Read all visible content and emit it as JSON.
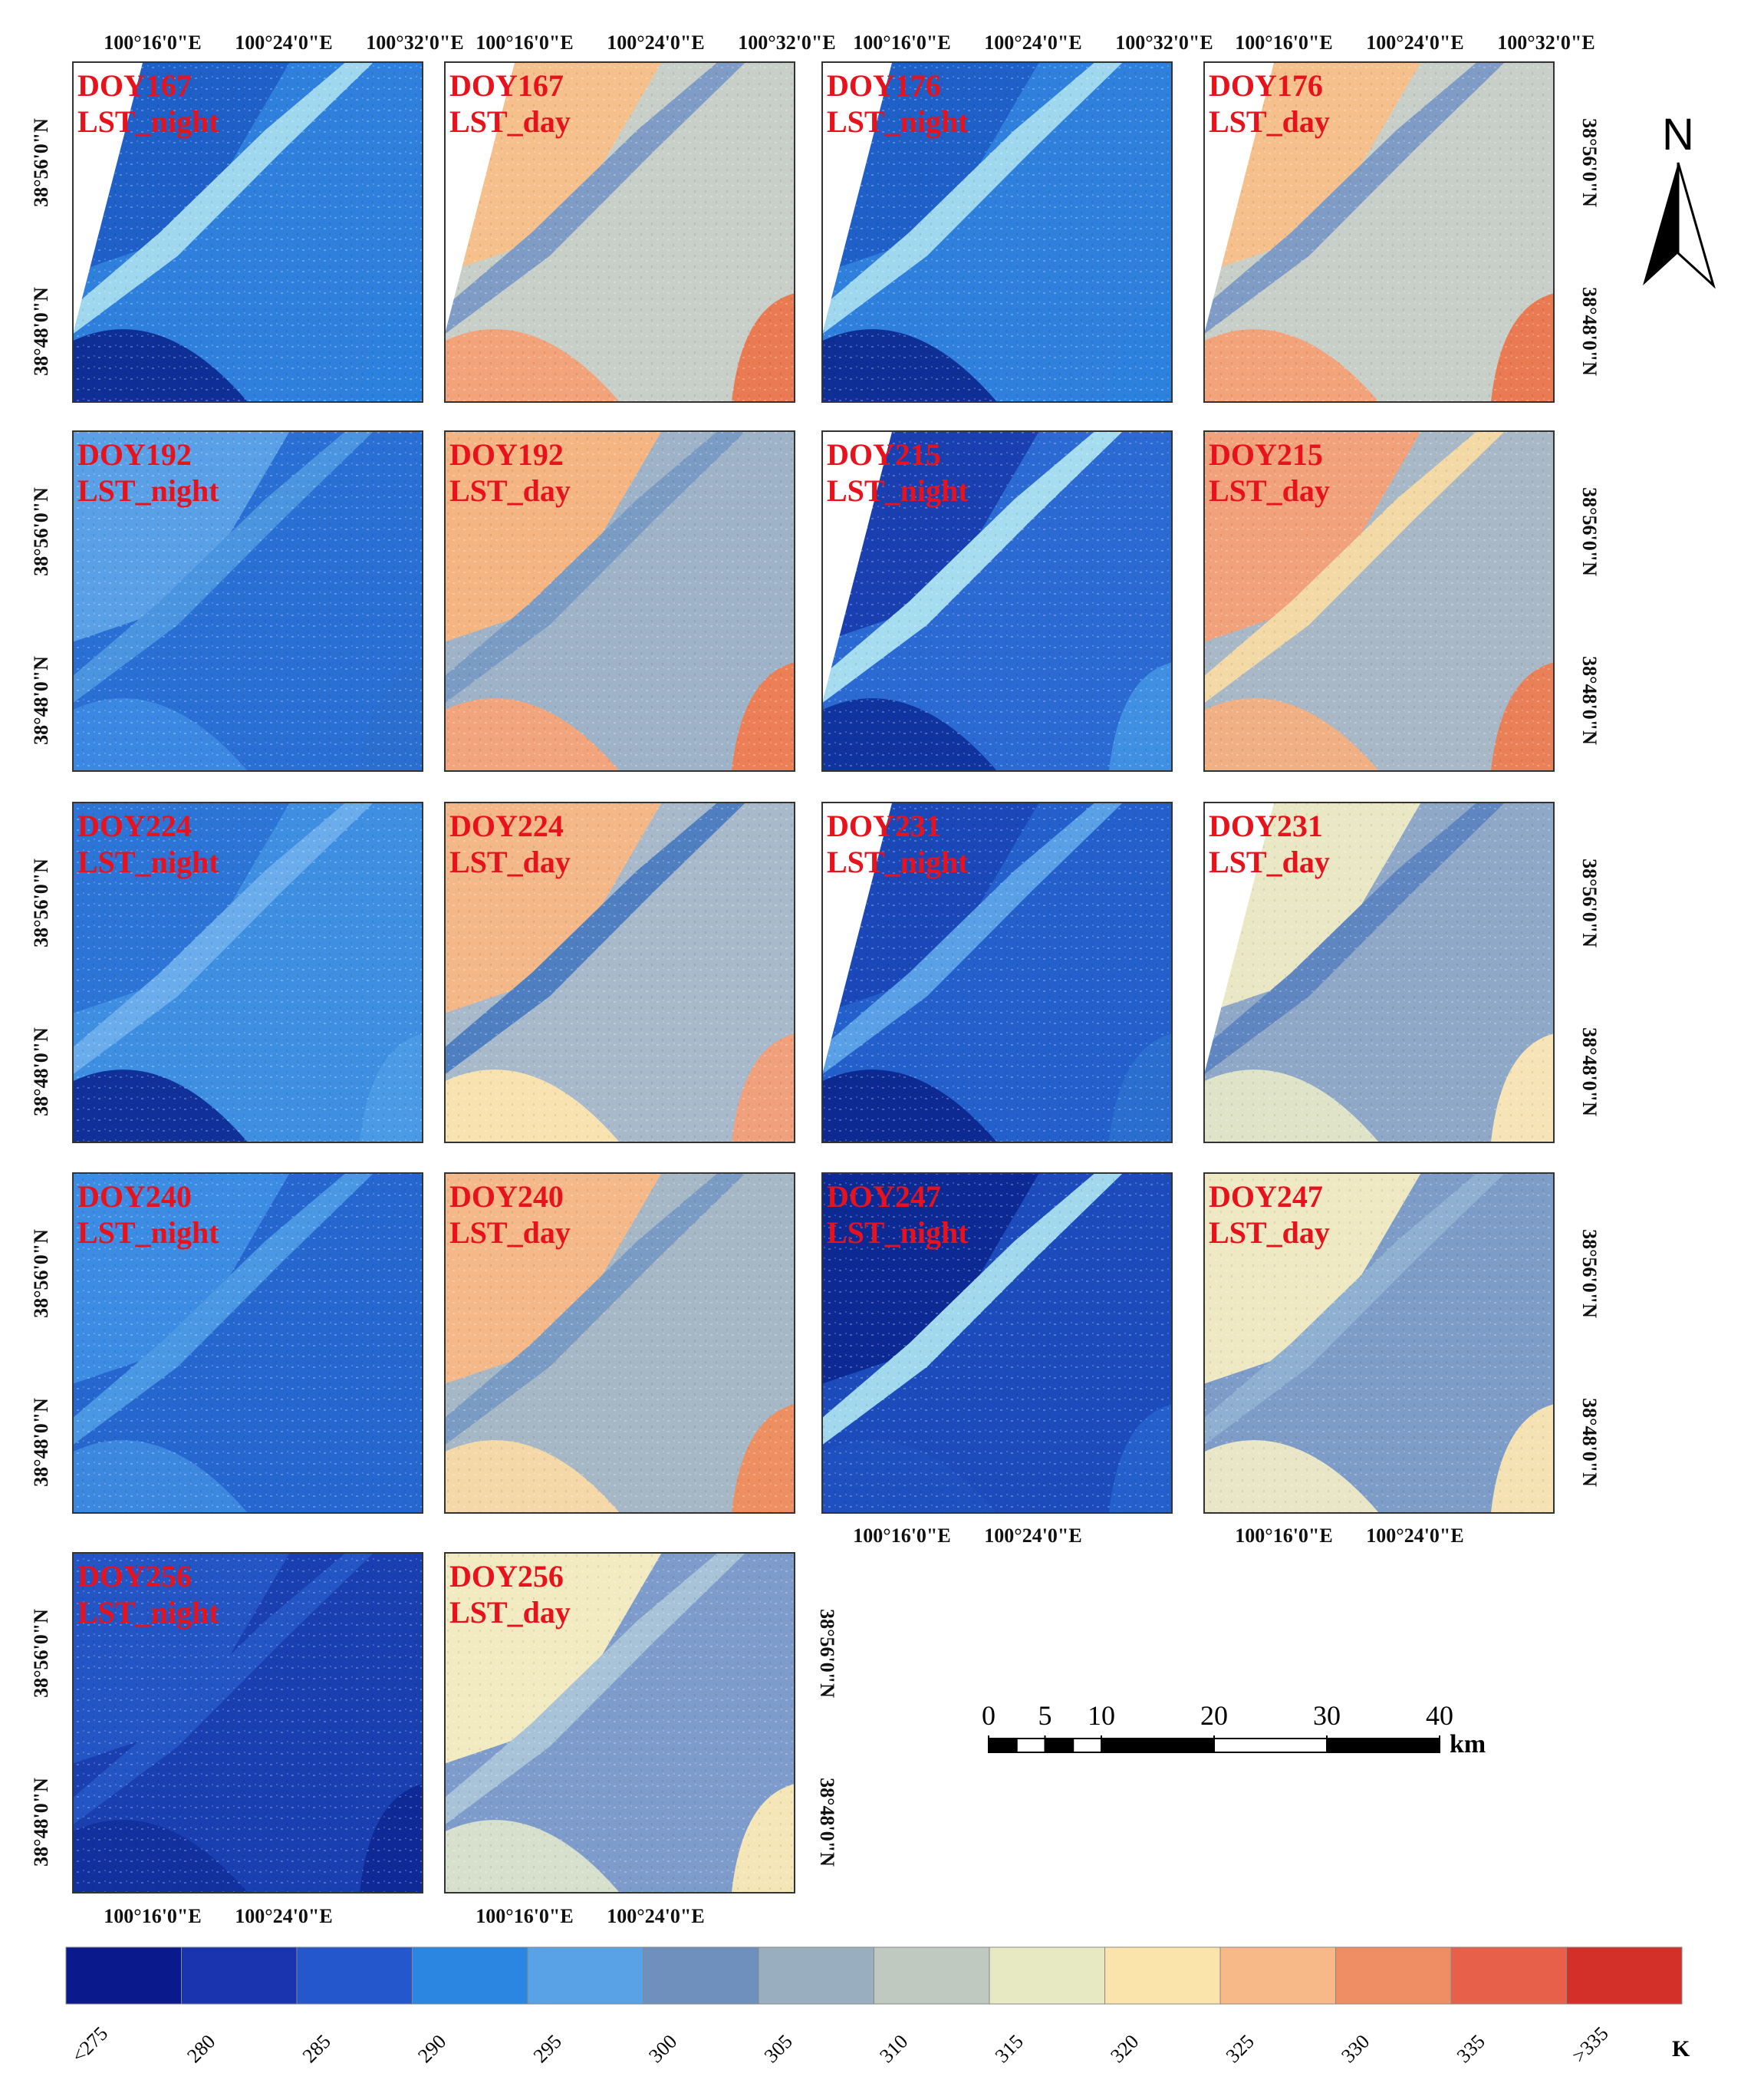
{
  "panels": [
    {
      "doy": "DOY167",
      "kind": "LST_night",
      "wedge": true,
      "colors": [
        "#2f7fdc",
        "#1f5fc8",
        "#9fd8ee",
        "#0e2f96",
        "#2c80de"
      ]
    },
    {
      "doy": "DOY167",
      "kind": "LST_day",
      "wedge": true,
      "colors": [
        "#c8cfc8",
        "#f5c08c",
        "#7e9cc6",
        "#f2a37a",
        "#ea7a52"
      ]
    },
    {
      "doy": "DOY176",
      "kind": "LST_night",
      "wedge": true,
      "colors": [
        "#2f7fdc",
        "#1f5fc8",
        "#9fd8ee",
        "#0e2f96",
        "#2c80de"
      ]
    },
    {
      "doy": "DOY176",
      "kind": "LST_day",
      "wedge": true,
      "colors": [
        "#c8cfc8",
        "#f5c08c",
        "#7e9cc6",
        "#f2a37a",
        "#ea7a52"
      ]
    },
    {
      "doy": "DOY192",
      "kind": "LST_night",
      "wedge": false,
      "colors": [
        "#2a6fd4",
        "#5aa0e6",
        "#4b95e0",
        "#3a88e2",
        "#2a6fd0"
      ]
    },
    {
      "doy": "DOY192",
      "kind": "LST_day",
      "wedge": false,
      "colors": [
        "#9fb3c8",
        "#f5b583",
        "#7a9bc4",
        "#f2a47c",
        "#ec7f56"
      ]
    },
    {
      "doy": "DOY215",
      "kind": "LST_night",
      "wedge": true,
      "colors": [
        "#2a6ad2",
        "#1a3fb0",
        "#a6dcf0",
        "#0f34a0",
        "#3f90e2"
      ]
    },
    {
      "doy": "DOY215",
      "kind": "LST_day",
      "wedge": false,
      "colors": [
        "#a8b8c6",
        "#f2a27a",
        "#f3d9a6",
        "#f0b084",
        "#ea8058"
      ]
    },
    {
      "doy": "DOY224",
      "kind": "LST_night",
      "wedge": false,
      "colors": [
        "#3e8fe2",
        "#2c74d6",
        "#6aacec",
        "#10309a",
        "#4a9ae6"
      ]
    },
    {
      "doy": "DOY224",
      "kind": "LST_day",
      "wedge": false,
      "colors": [
        "#a7b9ca",
        "#f4b888",
        "#4f7fc0",
        "#f8e2b0",
        "#f0a07a"
      ]
    },
    {
      "doy": "DOY231",
      "kind": "LST_night",
      "wedge": true,
      "colors": [
        "#2460cc",
        "#1a48b8",
        "#5aa0e6",
        "#0c2a92",
        "#2a6fd0"
      ]
    },
    {
      "doy": "DOY231",
      "kind": "LST_day",
      "wedge": true,
      "colors": [
        "#8fa8c8",
        "#eae8c4",
        "#5f86c0",
        "#dfe3c8",
        "#f6e4b6"
      ]
    },
    {
      "doy": "DOY240",
      "kind": "LST_night",
      "wedge": false,
      "colors": [
        "#2667cf",
        "#3b8ce2",
        "#4a97e4",
        "#3c88de",
        "#2667cf"
      ]
    },
    {
      "doy": "DOY240",
      "kind": "LST_day",
      "wedge": false,
      "colors": [
        "#a6b7c6",
        "#f5b888",
        "#7a9cc4",
        "#f4d8a8",
        "#ee8f62"
      ]
    },
    {
      "doy": "DOY247",
      "kind": "LST_night",
      "wedge": false,
      "colors": [
        "#1c4cbc",
        "#0d2a94",
        "#a2d8ee",
        "#1e50c0",
        "#2460cc"
      ]
    },
    {
      "doy": "DOY247",
      "kind": "LST_day",
      "wedge": false,
      "colors": [
        "#7d9cc8",
        "#eee9c2",
        "#8fb0d0",
        "#e8e6c6",
        "#f4e2b2"
      ]
    },
    {
      "doy": "DOY256",
      "kind": "LST_night",
      "wedge": false,
      "colors": [
        "#1a3fb0",
        "#2455c4",
        "#2455c4",
        "#12309e",
        "#0f2a96"
      ]
    },
    {
      "doy": "DOY256",
      "kind": "LST_day",
      "wedge": false,
      "colors": [
        "#7e9ccb",
        "#f2ebc2",
        "#a8c2d8",
        "#d7e0cc",
        "#f4e6b6"
      ]
    }
  ],
  "lon_labels": [
    "100°16'0\"E",
    "100°24'0\"E",
    "100°32'0\"E"
  ],
  "lat_labels": [
    "38°56'0\"N",
    "38°48'0\"N"
  ],
  "north": "N",
  "scale_bar": {
    "ticks": [
      0,
      5,
      10,
      20,
      30,
      40
    ],
    "unit": "km"
  },
  "legend": {
    "unit": "K",
    "items": [
      {
        "label": "<275",
        "color": "#0a1a8c"
      },
      {
        "label": "280",
        "color": "#1a34b0"
      },
      {
        "label": "285",
        "color": "#2456cc"
      },
      {
        "label": "290",
        "color": "#2a86e0"
      },
      {
        "label": "295",
        "color": "#5aa2e6"
      },
      {
        "label": "300",
        "color": "#6f90bc"
      },
      {
        "label": "305",
        "color": "#99aebe"
      },
      {
        "label": "310",
        "color": "#bfc9bf"
      },
      {
        "label": "315",
        "color": "#e7e9c3"
      },
      {
        "label": "320",
        "color": "#fbe3ac"
      },
      {
        "label": "325",
        "color": "#f7b988"
      },
      {
        "label": "330",
        "color": "#ef8e64"
      },
      {
        "label": "335",
        "color": "#e6604a"
      },
      {
        "label": ">335",
        "color": "#d4302a"
      }
    ]
  }
}
